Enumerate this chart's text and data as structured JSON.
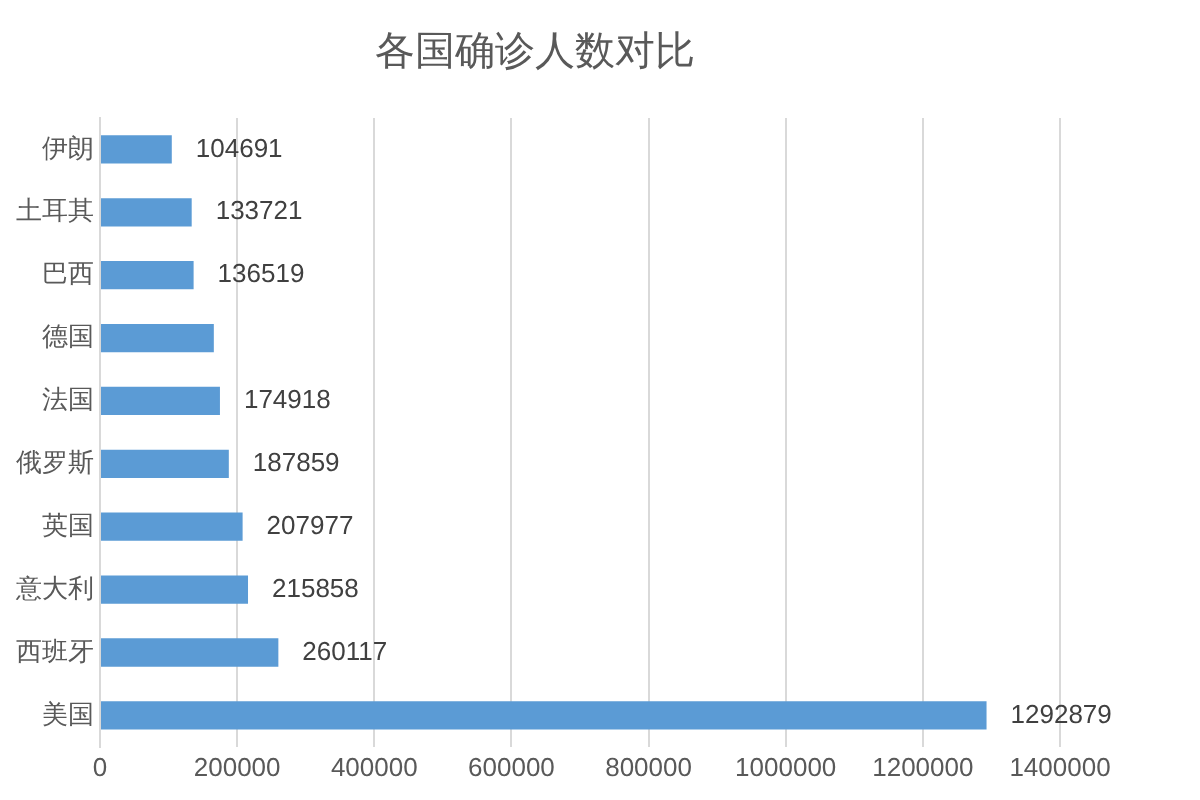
{
  "chart_data": {
    "type": "bar",
    "orientation": "horizontal",
    "title": "各国确诊人数对比",
    "categories": [
      "伊朗",
      "土耳其",
      "巴西",
      "德国",
      "法国",
      "俄罗斯",
      "英国",
      "意大利",
      "西班牙",
      "美国"
    ],
    "values": [
      104691,
      133721,
      136519,
      166000,
      174918,
      187859,
      207977,
      215858,
      260117,
      1292879
    ],
    "value_labels": [
      "104691",
      "133721",
      "136519",
      null,
      "174918",
      "187859",
      "207977",
      "215858",
      "260117",
      "1292879"
    ],
    "color": "#5b9bd5",
    "xlim": [
      0,
      1400000
    ],
    "xticks": [
      0,
      200000,
      400000,
      600000,
      800000,
      1000000,
      1200000,
      1400000
    ],
    "grid": "x"
  }
}
